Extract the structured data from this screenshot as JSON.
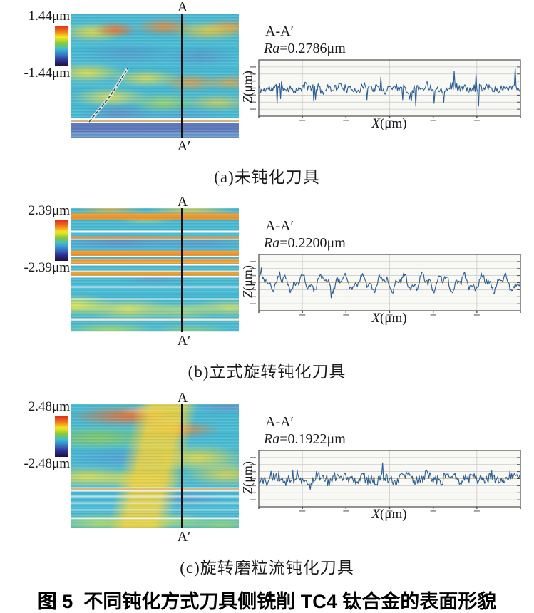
{
  "figure": {
    "caption": "图 5  不同钝化方式刀具侧铣削 TC4 钛合金的表面形貌"
  },
  "theme": {
    "profile_line_color": "#2e5f96",
    "plot_bg": "#f8f8f4",
    "grid_color": "#c6c6c6",
    "center_line_color": "#c9b27c",
    "axis_color": "#4a4a4a",
    "colorbar_gradient": [
      "#dd2f1e",
      "#f07a1d",
      "#f6e920",
      "#8cc832",
      "#3bbdd4",
      "#3a78c4",
      "#2b2f96",
      "#201038"
    ]
  },
  "panels": [
    {
      "id": "a",
      "scale_max": "1.44μm",
      "scale_min": "-1.44μm",
      "section_top": "A",
      "section_bottom": "A′",
      "profile_title": "A-A′",
      "ra_italic": "Ra",
      "ra_value": "=0.2786μm",
      "xlabel_italic": "X",
      "xlabel_rest": "(μm)",
      "zlabel_italic": "Z",
      "zlabel_rest": "(μm)",
      "caption": "(a)未钝化刀具",
      "profile": {
        "seed": 11,
        "hf": 5.5,
        "lf": 4,
        "lf_cycles": 9,
        "spike_prob": 0.05,
        "spike": 24
      }
    },
    {
      "id": "b",
      "scale_max": "2.39μm",
      "scale_min": "-2.39μm",
      "section_top": "A",
      "section_bottom": "A′",
      "profile_title": "A-A′",
      "ra_italic": "Ra",
      "ra_value": "=0.2200μm",
      "xlabel_italic": "X",
      "xlabel_rest": "(μm)",
      "zlabel_italic": "Z",
      "zlabel_rest": "(μm)",
      "caption": "(b)立式旋转钝化刀具",
      "profile": {
        "seed": 23,
        "hf": 4,
        "lf": 13,
        "lf_cycles": 13,
        "spike_prob": 0.012,
        "spike": 10
      }
    },
    {
      "id": "c",
      "scale_max": "2.48μm",
      "scale_min": "-2.48μm",
      "section_top": "A",
      "section_bottom": "A′",
      "profile_title": "A-A′",
      "ra_italic": "Ra",
      "ra_value": "=0.1922μm",
      "xlabel_italic": "X",
      "xlabel_rest": "(μm)",
      "zlabel_italic": "Z",
      "zlabel_rest": "(μm)",
      "caption": "(c)旋转磨粒流钝化刀具",
      "profile": {
        "seed": 37,
        "hf": 7,
        "lf": 6,
        "lf_cycles": 12,
        "spike_prob": 0.02,
        "spike": 15
      }
    }
  ]
}
